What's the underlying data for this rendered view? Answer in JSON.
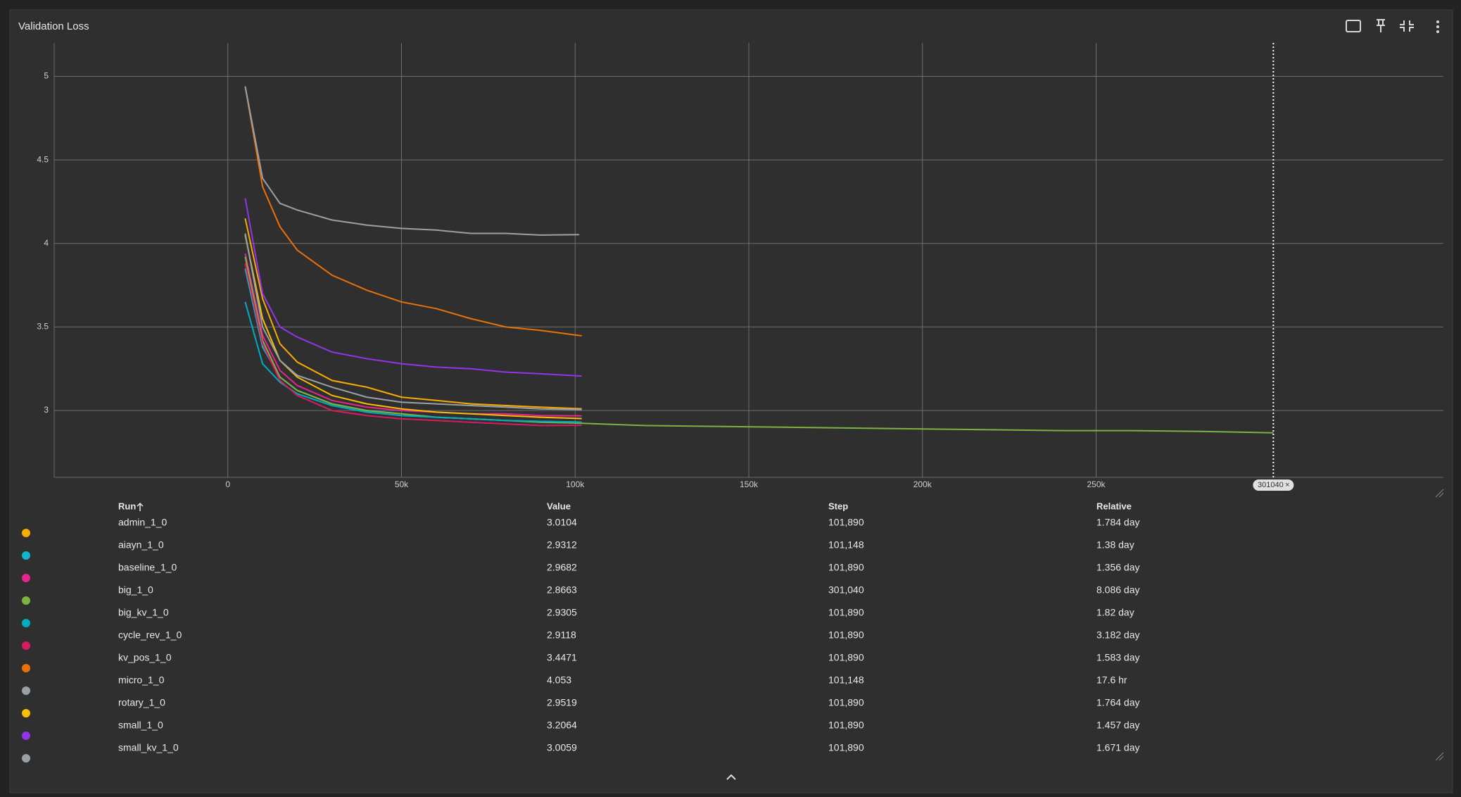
{
  "title": "Validation Loss",
  "chart_data": {
    "type": "line",
    "xlim": [
      -50000,
      350000
    ],
    "xticks": [
      0,
      {
        "value": 50000,
        "label": "50k"
      },
      {
        "value": 100000,
        "label": "100k"
      },
      {
        "value": 150000,
        "label": "150k"
      },
      {
        "value": 200000,
        "label": "200k"
      },
      {
        "value": 250000,
        "label": "250k"
      }
    ],
    "ylim": [
      2.6,
      5.2
    ],
    "yticks": [
      3,
      3.5,
      4,
      4.5,
      5
    ],
    "grid": true,
    "cursor_step": 301040,
    "series": [
      {
        "name": "admin_1_0",
        "color": "#f9ab00",
        "x": [
          5000,
          10000,
          15000,
          20000,
          30000,
          40000,
          50000,
          60000,
          70000,
          80000,
          90000,
          101890
        ],
        "values": [
          4.15,
          3.67,
          3.4,
          3.29,
          3.18,
          3.14,
          3.08,
          3.06,
          3.04,
          3.03,
          3.02,
          3.0104
        ]
      },
      {
        "name": "aiayn_1_0",
        "color": "#12b5cb",
        "x": [
          5000,
          10000,
          15000,
          20000,
          30000,
          40000,
          50000,
          60000,
          70000,
          80000,
          90000,
          101148
        ],
        "values": [
          3.85,
          3.38,
          3.2,
          3.12,
          3.04,
          3.0,
          2.98,
          2.96,
          2.95,
          2.94,
          2.935,
          2.9312
        ]
      },
      {
        "name": "baseline_1_0",
        "color": "#e52592",
        "x": [
          5000,
          10000,
          15000,
          20000,
          30000,
          40000,
          50000,
          60000,
          70000,
          80000,
          90000,
          101890
        ],
        "values": [
          3.94,
          3.45,
          3.24,
          3.15,
          3.06,
          3.02,
          3.0,
          2.99,
          2.98,
          2.98,
          2.97,
          2.9682
        ]
      },
      {
        "name": "big_1_0",
        "color": "#7cb342",
        "x": [
          5000,
          10000,
          15000,
          20000,
          30000,
          40000,
          50000,
          60000,
          70000,
          80000,
          90000,
          100000,
          120000,
          140000,
          160000,
          180000,
          200000,
          220000,
          240000,
          260000,
          280000,
          301040
        ],
        "values": [
          3.92,
          3.42,
          3.2,
          3.12,
          3.04,
          3.0,
          2.98,
          2.96,
          2.95,
          2.94,
          2.93,
          2.925,
          2.91,
          2.905,
          2.9,
          2.895,
          2.89,
          2.885,
          2.88,
          2.88,
          2.875,
          2.8663
        ]
      },
      {
        "name": "big_kv_1_0",
        "color": "#00acc1",
        "x": [
          5000,
          10000,
          15000,
          20000,
          30000,
          40000,
          50000,
          60000,
          70000,
          80000,
          90000,
          101890
        ],
        "values": [
          3.65,
          3.28,
          3.17,
          3.1,
          3.03,
          2.99,
          2.97,
          2.96,
          2.95,
          2.94,
          2.935,
          2.9305
        ]
      },
      {
        "name": "cycle_rev_1_0",
        "color": "#d81b60",
        "x": [
          5000,
          10000,
          15000,
          20000,
          30000,
          40000,
          50000,
          60000,
          70000,
          80000,
          90000,
          101890
        ],
        "values": [
          3.88,
          3.4,
          3.18,
          3.09,
          3.0,
          2.97,
          2.95,
          2.94,
          2.93,
          2.92,
          2.91,
          2.9118
        ]
      },
      {
        "name": "kv_pos_1_0",
        "color": "#e8710a",
        "x": [
          5000,
          10000,
          15000,
          20000,
          30000,
          40000,
          50000,
          60000,
          70000,
          80000,
          90000,
          101890
        ],
        "values": [
          4.94,
          4.34,
          4.1,
          3.96,
          3.81,
          3.72,
          3.65,
          3.61,
          3.55,
          3.5,
          3.48,
          3.4471
        ]
      },
      {
        "name": "micro_1_0",
        "color": "#9aa0a6",
        "x": [
          5000,
          10000,
          15000,
          20000,
          30000,
          40000,
          50000,
          60000,
          70000,
          80000,
          90000,
          101148
        ],
        "values": [
          4.94,
          4.39,
          4.24,
          4.2,
          4.14,
          4.11,
          4.09,
          4.08,
          4.06,
          4.06,
          4.05,
          4.053
        ]
      },
      {
        "name": "rotary_1_0",
        "color": "#fbbc04",
        "x": [
          5000,
          10000,
          15000,
          20000,
          30000,
          40000,
          50000,
          60000,
          70000,
          80000,
          90000,
          101890
        ],
        "values": [
          4.05,
          3.55,
          3.3,
          3.2,
          3.09,
          3.04,
          3.01,
          2.99,
          2.98,
          2.97,
          2.96,
          2.9519
        ]
      },
      {
        "name": "small_1_0",
        "color": "#9334e6",
        "x": [
          5000,
          10000,
          15000,
          20000,
          30000,
          40000,
          50000,
          60000,
          70000,
          80000,
          90000,
          101890
        ],
        "values": [
          4.27,
          3.7,
          3.5,
          3.44,
          3.35,
          3.31,
          3.28,
          3.26,
          3.25,
          3.23,
          3.22,
          3.2064
        ]
      },
      {
        "name": "small_kv_1_0",
        "color": "#9aa0a6",
        "x": [
          5000,
          10000,
          15000,
          20000,
          30000,
          40000,
          50000,
          60000,
          70000,
          80000,
          90000,
          101890
        ],
        "values": [
          4.06,
          3.5,
          3.3,
          3.21,
          3.14,
          3.08,
          3.05,
          3.04,
          3.03,
          3.02,
          3.01,
          3.0059
        ]
      }
    ]
  },
  "table": {
    "header": [
      "Run",
      "Value",
      "Step",
      "Relative"
    ],
    "rows": [
      {
        "step": "101,890",
        "relative": "1.784 day"
      },
      {
        "step": "101,148",
        "relative": "1.38 day"
      },
      {
        "step": "101,890",
        "relative": "1.356 day"
      },
      {
        "step": "301,040",
        "relative": "8.086 day"
      },
      {
        "step": "101,890",
        "relative": "1.82 day"
      },
      {
        "step": "101,890",
        "relative": "3.182 day"
      },
      {
        "step": "101,890",
        "relative": "1.583 day"
      },
      {
        "step": "101,148",
        "relative": "17.6 hr"
      },
      {
        "step": "101,890",
        "relative": "1.764 day"
      },
      {
        "step": "101,890",
        "relative": "1.457 day"
      },
      {
        "step": "101,890",
        "relative": "1.671 day"
      }
    ]
  }
}
